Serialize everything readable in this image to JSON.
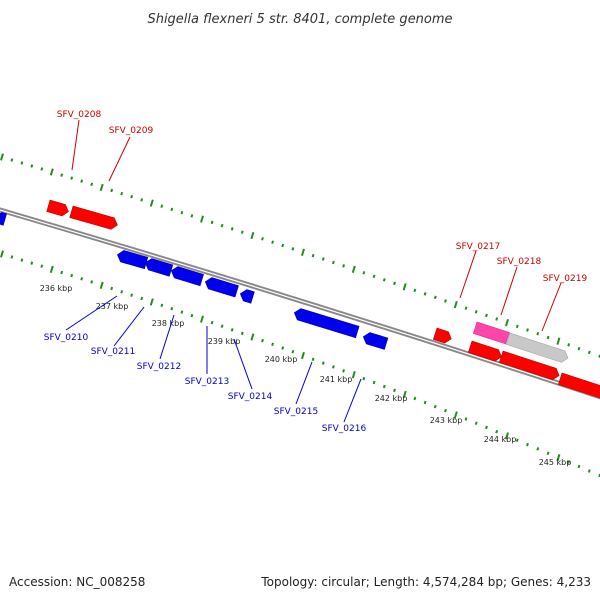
{
  "title": "Shigella flexneri 5 str. 8401, complete genome",
  "footer": {
    "accession": "Accession: NC_008258",
    "stats": "Topology: circular; Length: 4,574,284 bp; Genes: 4,233"
  },
  "colors": {
    "forward_gene": "#ff0000",
    "reverse_gene": "#0000ee",
    "forward_label": "#cc0000",
    "reverse_label": "#0000cc",
    "highlight_gene": "#ff44aa",
    "gray_gene": "#c8c8c8",
    "backbone": "#888888",
    "tick": "#228b22"
  },
  "kbp_labels": [
    "236 kbp",
    "237 kbp",
    "238 kbp",
    "239 kbp",
    "240 kbp",
    "241 kbp",
    "242 kbp",
    "243 kbp",
    "244 kbp",
    "245 kbp"
  ],
  "forward_genes": [
    "SFV_0208",
    "SFV_0209",
    "SFV_0217",
    "SFV_0218",
    "SFV_0219"
  ],
  "reverse_genes": [
    "SFV_0210",
    "SFV_0211",
    "SFV_0212",
    "SFV_0213",
    "SFV_0214",
    "SFV_0215",
    "SFV_0216"
  ]
}
